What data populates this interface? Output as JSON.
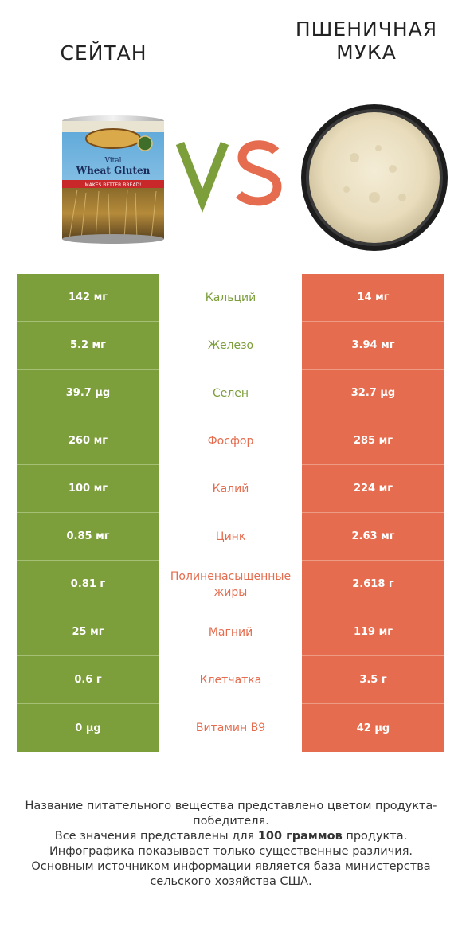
{
  "header": {
    "left_title": "сейтан",
    "right_title_line1": "пшеничная",
    "right_title_line2": "мука",
    "vs": "VS"
  },
  "images": {
    "left": {
      "label_vital": "Vital",
      "label_name": "Wheat Gluten",
      "label_band": "MAKES BETTER BREAD!"
    },
    "right": {}
  },
  "colors": {
    "winner_left": "#7c9e3b",
    "winner_right": "#e56c4e"
  },
  "rows": [
    {
      "left": "142 мг",
      "name": "Кальций",
      "right": "14 мг",
      "winner": "left"
    },
    {
      "left": "5.2 мг",
      "name": "Железо",
      "right": "3.94 мг",
      "winner": "left"
    },
    {
      "left": "39.7 µg",
      "name": "Селен",
      "right": "32.7 µg",
      "winner": "left"
    },
    {
      "left": "260 мг",
      "name": "Фосфор",
      "right": "285 мг",
      "winner": "right"
    },
    {
      "left": "100 мг",
      "name": "Калий",
      "right": "224 мг",
      "winner": "right"
    },
    {
      "left": "0.85 мг",
      "name": "Цинк",
      "right": "2.63 мг",
      "winner": "right"
    },
    {
      "left": "0.81 г",
      "name": "Полиненасыщенные жиры",
      "right": "2.618 г",
      "winner": "right"
    },
    {
      "left": "25 мг",
      "name": "Магний",
      "right": "119 мг",
      "winner": "right"
    },
    {
      "left": "0.6 г",
      "name": "Клетчатка",
      "right": "3.5 г",
      "winner": "right"
    },
    {
      "left": "0 µg",
      "name": "Витамин B9",
      "right": "42 µg",
      "winner": "right"
    }
  ],
  "footer": {
    "line1": "Название питательного вещества представлено цветом продукта-победителя.",
    "line2_a": "Все значения представлены для ",
    "line2_b": "100 граммов",
    "line2_c": " продукта.",
    "line3": "Инфографика показывает только существенные различия.",
    "line4": "Основным источником информации является база министерства сельского хозяйства США."
  }
}
